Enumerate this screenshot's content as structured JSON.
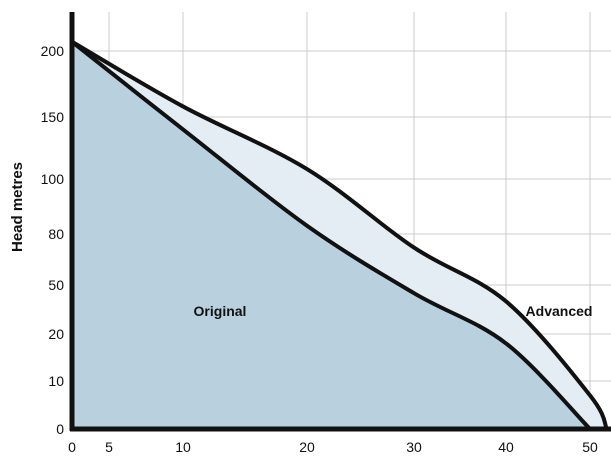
{
  "chart_data": {
    "type": "area",
    "ylabel": "Head metres",
    "xlabel": "",
    "x_ticks": [
      "0",
      "5",
      "10",
      "20",
      "30",
      "40",
      "50"
    ],
    "y_ticks": [
      "0",
      "10",
      "20",
      "50",
      "80",
      "100",
      "150",
      "200"
    ],
    "x_tick_values": [
      0,
      5,
      10,
      20,
      30,
      40,
      50
    ],
    "y_tick_values": [
      0,
      10,
      20,
      50,
      80,
      100,
      150,
      200
    ],
    "grid": true,
    "colors": {
      "original_fill": "#b9d1df",
      "advanced_fill": "#e4edf3",
      "line": "#111111",
      "grid": "#cccccc"
    },
    "series": [
      {
        "name": "Original",
        "x": [
          0,
          10,
          20,
          30,
          40,
          50
        ],
        "y": [
          207,
          140,
          83,
          45,
          18,
          0
        ]
      },
      {
        "name": "Advanced",
        "x": [
          0,
          10,
          20,
          30,
          40,
          50,
          52
        ],
        "y": [
          207,
          158,
          108,
          72,
          40,
          7,
          0
        ]
      }
    ]
  }
}
